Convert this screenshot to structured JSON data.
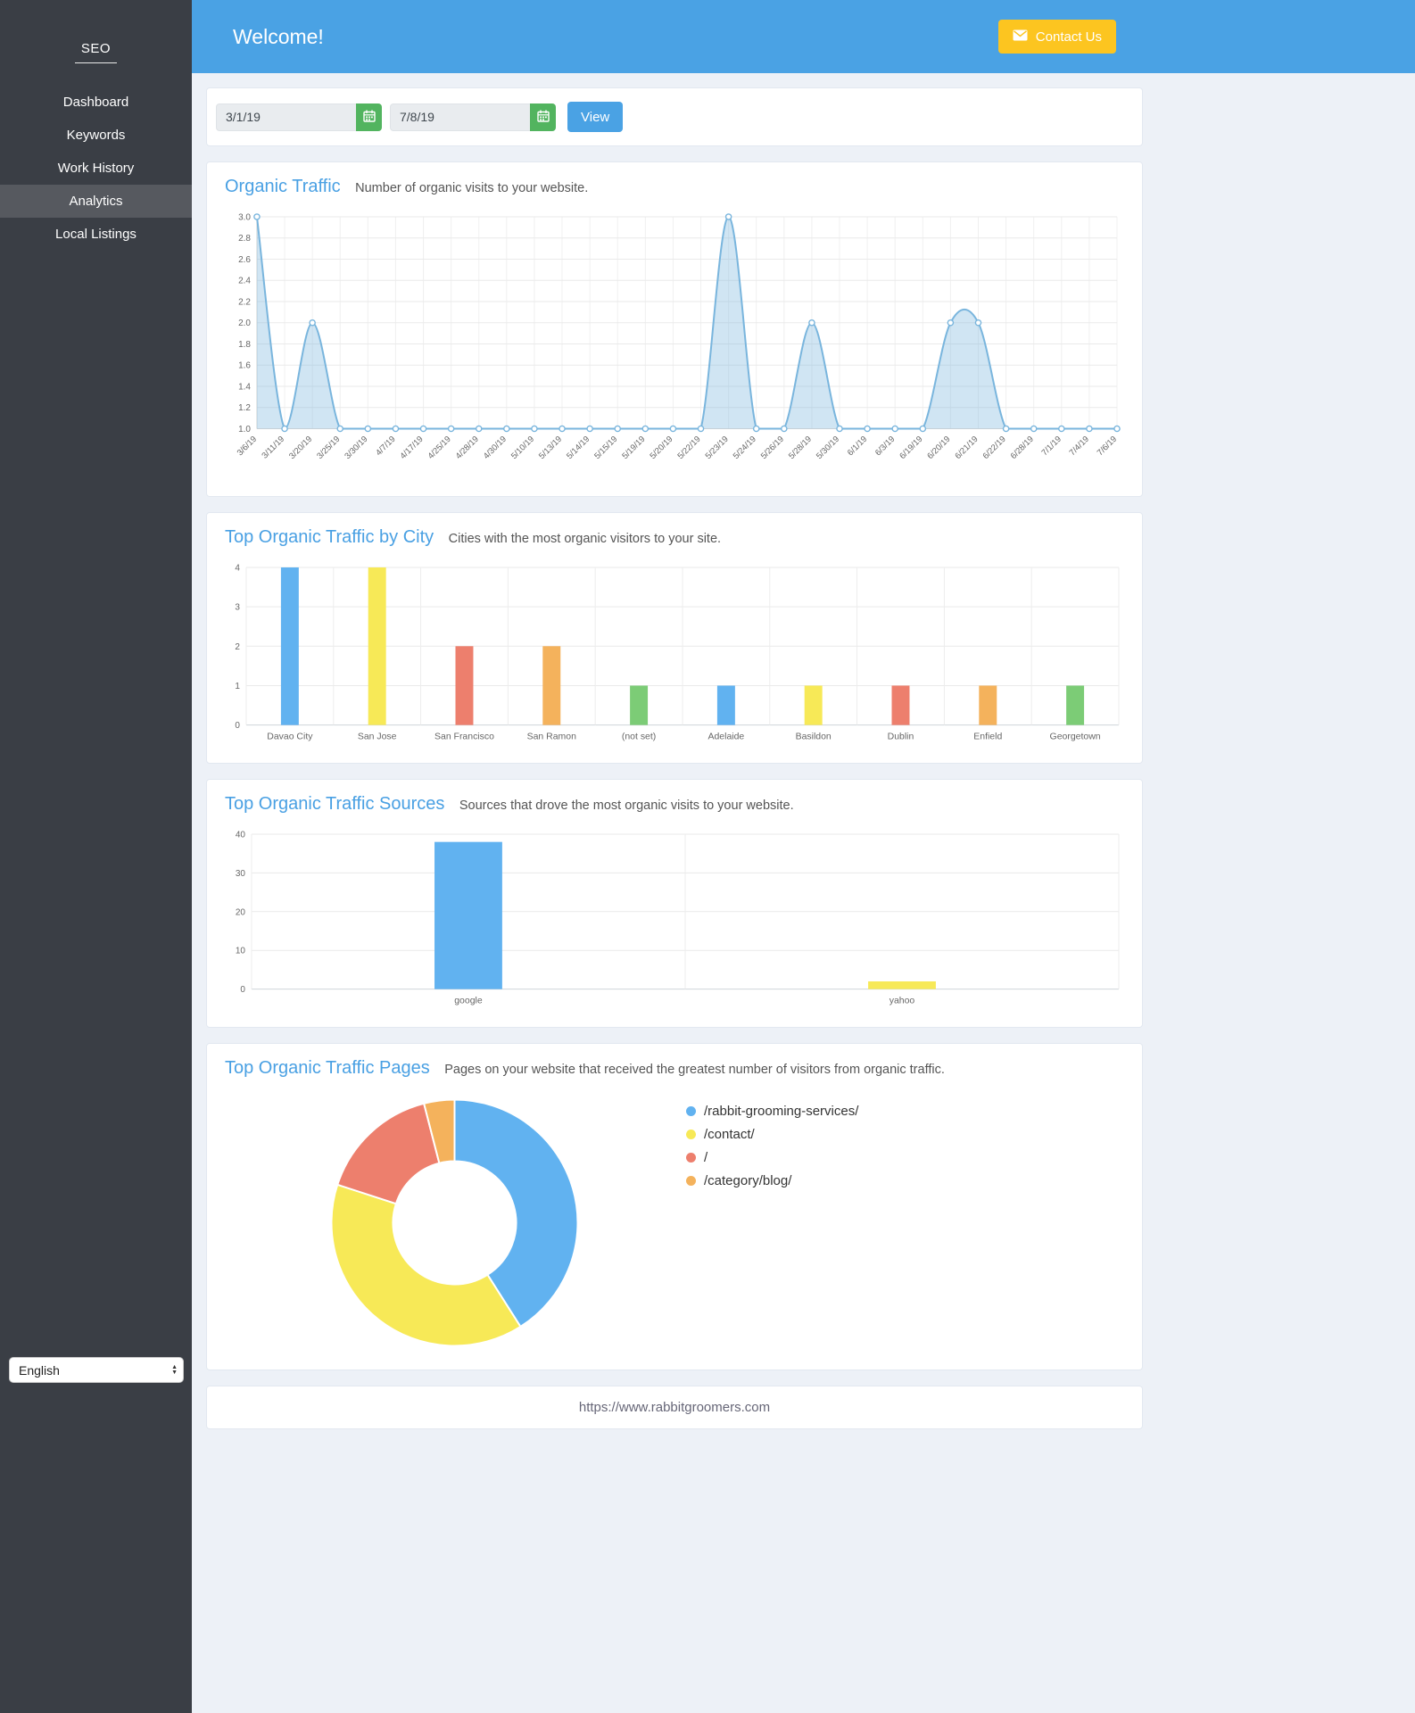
{
  "sidebar": {
    "brand": "SEO",
    "items": [
      {
        "label": "Dashboard",
        "active": false
      },
      {
        "label": "Keywords",
        "active": false
      },
      {
        "label": "Work History",
        "active": false
      },
      {
        "label": "Analytics",
        "active": true
      },
      {
        "label": "Local Listings",
        "active": false
      }
    ],
    "language": "English"
  },
  "header": {
    "title": "Welcome!",
    "contact_button": "Contact Us"
  },
  "date_controls": {
    "start_date": "3/1/19",
    "end_date": "7/8/19",
    "view_button": "View"
  },
  "footer": {
    "url": "https://www.rabbitgroomers.com"
  },
  "chart_data": [
    {
      "id": "organic-traffic",
      "type": "line",
      "title": "Organic Traffic",
      "subtitle": "Number of organic visits to your website.",
      "x": [
        "3/6/19",
        "3/11/19",
        "3/20/19",
        "3/25/19",
        "3/30/19",
        "4/7/19",
        "4/17/19",
        "4/25/19",
        "4/28/19",
        "4/30/19",
        "5/10/19",
        "5/13/19",
        "5/14/19",
        "5/15/19",
        "5/19/19",
        "5/20/19",
        "5/22/19",
        "5/23/19",
        "5/24/19",
        "5/26/19",
        "5/28/19",
        "5/30/19",
        "6/1/19",
        "6/3/19",
        "6/19/19",
        "6/20/19",
        "6/21/19",
        "6/22/19",
        "6/28/19",
        "7/1/19",
        "7/4/19",
        "7/6/19"
      ],
      "values": [
        3,
        1,
        2,
        1,
        1,
        1,
        1,
        1,
        1,
        1,
        1,
        1,
        1,
        1,
        1,
        1,
        1,
        3,
        1,
        1,
        2,
        1,
        1,
        1,
        1,
        2,
        2,
        1,
        1,
        1,
        1,
        1
      ],
      "ylim": [
        1.0,
        3.0
      ],
      "ytick_step": 0.2,
      "line_color": "#79b5dd",
      "fill_color": "rgba(121,181,221,0.35)",
      "grid": true,
      "legend": "none"
    },
    {
      "id": "traffic-by-city",
      "type": "bar",
      "title": "Top Organic Traffic by City",
      "subtitle": "Cities with the most organic visitors to your site.",
      "categories": [
        "Davao City",
        "San Jose",
        "San Francisco",
        "San Ramon",
        "(not set)",
        "Adelaide",
        "Basildon",
        "Dublin",
        "Enfield",
        "Georgetown"
      ],
      "values": [
        4,
        4,
        2,
        2,
        1,
        1,
        1,
        1,
        1,
        1
      ],
      "colors": [
        "#61b2f0",
        "#f7e957",
        "#ed7f6d",
        "#f4b25c",
        "#7ccc76",
        "#61b2f0",
        "#f7e957",
        "#ed7f6d",
        "#f4b25c",
        "#7ccc76"
      ],
      "ylim": [
        0,
        4
      ],
      "ytick_step": 1,
      "grid": true,
      "legend": "none"
    },
    {
      "id": "traffic-sources",
      "type": "bar",
      "title": "Top Organic Traffic Sources",
      "subtitle": "Sources that drove the most organic visits to your website.",
      "categories": [
        "google",
        "yahoo"
      ],
      "values": [
        38,
        2
      ],
      "colors": [
        "#61b2f0",
        "#f7e957"
      ],
      "ylim": [
        0,
        40
      ],
      "ytick_step": 10,
      "grid": true,
      "legend": "none"
    },
    {
      "id": "traffic-pages",
      "type": "pie",
      "title": "Top Organic Traffic Pages",
      "subtitle": "Pages on your website that received the greatest number of visitors from organic traffic.",
      "labels": [
        "/rabbit-grooming-services/",
        "/contact/",
        "/",
        "/category/blog/"
      ],
      "values": [
        41,
        39,
        16,
        4
      ],
      "colors": [
        "#61b2f0",
        "#f7e957",
        "#ed7f6d",
        "#f4b25c"
      ],
      "donut": true,
      "legend": "right"
    }
  ]
}
